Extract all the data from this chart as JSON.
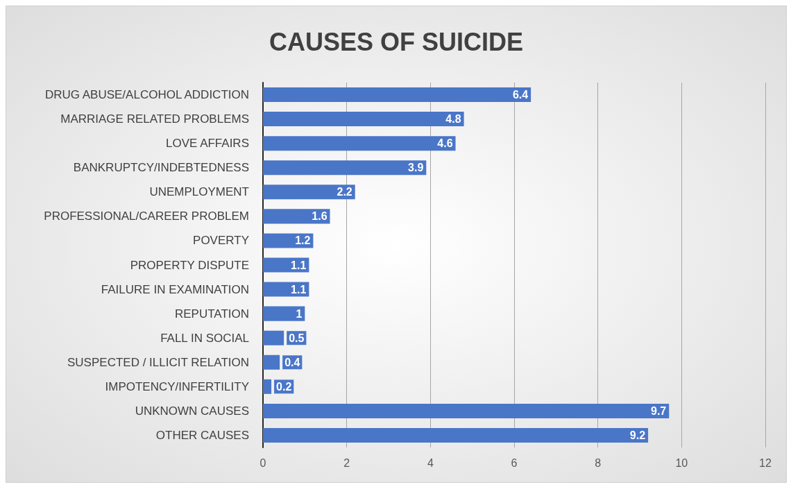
{
  "chart_data": {
    "type": "bar",
    "orientation": "horizontal",
    "title": "CAUSES OF SUICIDE",
    "categories": [
      "DRUG ABUSE/ALCOHOL ADDICTION",
      "MARRIAGE RELATED PROBLEMS",
      "LOVE AFFAIRS",
      "BANKRUPTCY/INDEBTEDNESS",
      "UNEMPLOYMENT",
      "PROFESSIONAL/CAREER PROBLEM",
      "POVERTY",
      "PROPERTY DISPUTE",
      "FAILURE IN EXAMINATION",
      "REPUTATION",
      "FALL IN SOCIAL",
      "SUSPECTED / ILLICIT RELATION",
      "IMPOTENCY/INFERTILITY",
      "UNKNOWN CAUSES",
      "OTHER CAUSES"
    ],
    "values": [
      6.4,
      4.8,
      4.6,
      3.9,
      2.2,
      1.6,
      1.2,
      1.1,
      1.1,
      1,
      0.5,
      0.4,
      0.2,
      9.7,
      9.2
    ],
    "color": "#4a76c8",
    "xlim": [
      0,
      12
    ],
    "xticks": [
      0,
      2,
      4,
      6,
      8,
      10,
      12
    ],
    "grid": "x",
    "data_labels": true
  }
}
